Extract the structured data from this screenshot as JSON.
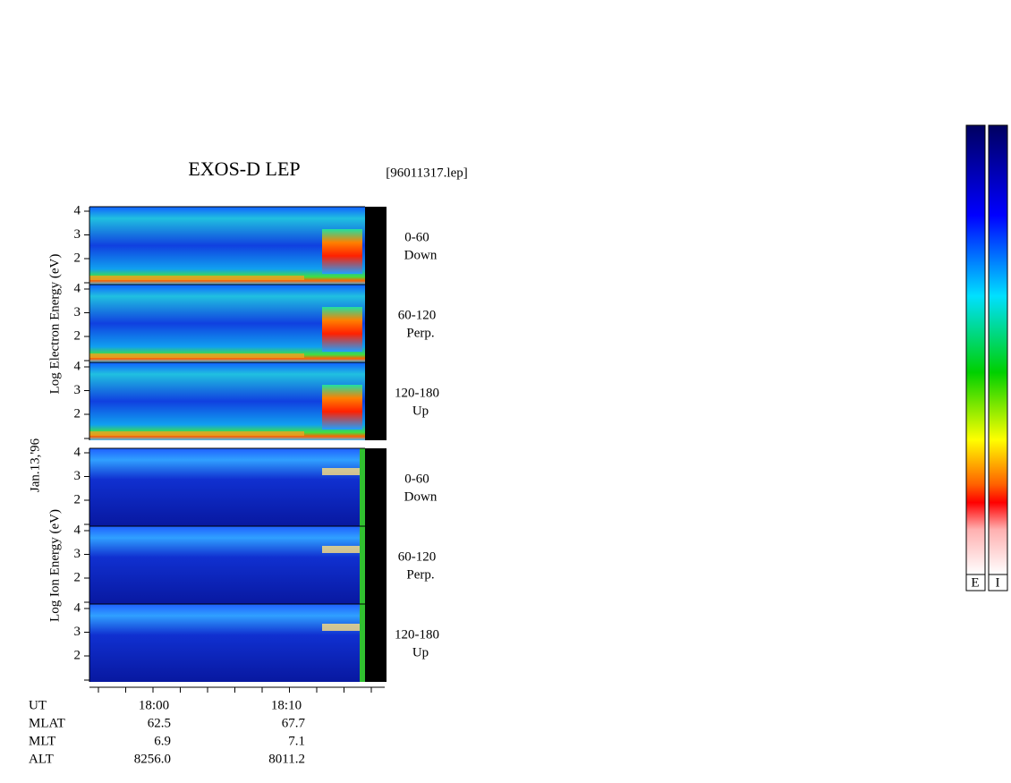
{
  "title": "EXOS-D LEP",
  "file": "[96011317.lep]",
  "date_label": "Jan.13,'96",
  "electron_axis_label": "Log  Electron  Energy  (eV)",
  "ion_axis_label": "Log  Ion  Energy  (eV)",
  "panels": [
    {
      "species": "electron",
      "yticks": [
        2,
        3,
        4
      ],
      "pitch_angle": "0-60",
      "direction": "Down"
    },
    {
      "species": "electron",
      "yticks": [
        2,
        3,
        4
      ],
      "pitch_angle": "60-120",
      "direction": "Perp."
    },
    {
      "species": "electron",
      "yticks": [
        2,
        3,
        4
      ],
      "pitch_angle": "120-180",
      "direction": "Up"
    },
    {
      "species": "ion",
      "yticks": [
        2,
        3,
        4
      ],
      "pitch_angle": "0-60",
      "direction": "Down"
    },
    {
      "species": "ion",
      "yticks": [
        2,
        3,
        4
      ],
      "pitch_angle": "60-120",
      "direction": "Perp."
    },
    {
      "species": "ion",
      "yticks": [
        2,
        3,
        4
      ],
      "pitch_angle": "120-180",
      "direction": "Up"
    }
  ],
  "time_axis": [
    {
      "label": "UT",
      "values": [
        "18:00",
        "18:10"
      ]
    },
    {
      "label": "MLAT",
      "values": [
        "62.5",
        "67.7"
      ]
    },
    {
      "label": "MLT",
      "values": [
        "6.9",
        "7.1"
      ]
    },
    {
      "label": "ALT",
      "values": [
        "8256.0",
        "8011.2"
      ]
    }
  ],
  "colorbar_labels": [
    "E",
    "I"
  ]
}
